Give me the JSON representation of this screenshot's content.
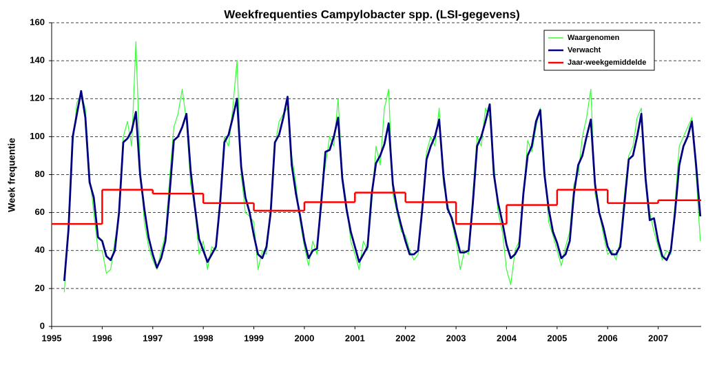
{
  "chart_data": {
    "type": "line",
    "title": "Weekfrequenties Campylobacter spp. (LSI-gegevens)",
    "y_label": "Week frequentie",
    "xlim": [
      1995,
      2007.85
    ],
    "xticks": [
      1995,
      1996,
      1997,
      1998,
      1999,
      2000,
      2001,
      2002,
      2003,
      2004,
      2005,
      2006,
      2007
    ],
    "ylim": [
      0,
      160
    ],
    "yticks": [
      0,
      20,
      40,
      60,
      80,
      100,
      120,
      140,
      160
    ],
    "grid": true,
    "legend": "top-right",
    "x": [
      1995.25,
      1995.333,
      1995.417,
      1995.5,
      1995.583,
      1995.667,
      1995.75,
      1995.833,
      1995.917,
      1996,
      1996.083,
      1996.167,
      1996.25,
      1996.333,
      1996.417,
      1996.5,
      1996.583,
      1996.667,
      1996.75,
      1996.833,
      1996.917,
      1997,
      1997.083,
      1997.167,
      1997.25,
      1997.333,
      1997.417,
      1997.5,
      1997.583,
      1997.667,
      1997.75,
      1997.833,
      1997.917,
      1998,
      1998.083,
      1998.167,
      1998.25,
      1998.333,
      1998.417,
      1998.5,
      1998.583,
      1998.667,
      1998.75,
      1998.833,
      1998.917,
      1999,
      1999.083,
      1999.167,
      1999.25,
      1999.333,
      1999.417,
      1999.5,
      1999.583,
      1999.667,
      1999.75,
      1999.833,
      1999.917,
      2000,
      2000.083,
      2000.167,
      2000.25,
      2000.333,
      2000.417,
      2000.5,
      2000.583,
      2000.667,
      2000.75,
      2000.833,
      2000.917,
      2001,
      2001.083,
      2001.167,
      2001.25,
      2001.333,
      2001.417,
      2001.5,
      2001.583,
      2001.667,
      2001.75,
      2001.833,
      2001.917,
      2002,
      2002.083,
      2002.167,
      2002.25,
      2002.333,
      2002.417,
      2002.5,
      2002.583,
      2002.667,
      2002.75,
      2002.833,
      2002.917,
      2003,
      2003.083,
      2003.167,
      2003.25,
      2003.333,
      2003.417,
      2003.5,
      2003.583,
      2003.667,
      2003.75,
      2003.833,
      2003.917,
      2004,
      2004.083,
      2004.167,
      2004.25,
      2004.333,
      2004.417,
      2004.5,
      2004.583,
      2004.667,
      2004.75,
      2004.833,
      2004.917,
      2005,
      2005.083,
      2005.167,
      2005.25,
      2005.333,
      2005.417,
      2005.5,
      2005.583,
      2005.667,
      2005.75,
      2005.833,
      2005.917,
      2006,
      2006.083,
      2006.167,
      2006.25,
      2006.333,
      2006.417,
      2006.5,
      2006.583,
      2006.667,
      2006.75,
      2006.833,
      2006.917,
      2007,
      2007.083,
      2007.167,
      2007.25,
      2007.333,
      2007.417,
      2007.5,
      2007.583,
      2007.667,
      2007.75,
      2007.833
    ],
    "series": [
      {
        "name": "Waargenomen",
        "color": "#33ff33",
        "values": [
          18,
          55,
          95,
          118,
          122,
          115,
          80,
          60,
          40,
          40,
          28,
          30,
          45,
          58,
          100,
          108,
          95,
          150,
          85,
          55,
          42,
          35,
          30,
          40,
          48,
          78,
          105,
          112,
          125,
          108,
          75,
          62,
          38,
          45,
          30,
          42,
          40,
          68,
          100,
          95,
          115,
          140,
          80,
          60,
          58,
          55,
          30,
          40,
          38,
          62,
          95,
          108,
          112,
          115,
          90,
          75,
          55,
          42,
          32,
          45,
          38,
          70,
          85,
          100,
          95,
          120,
          80,
          65,
          45,
          38,
          30,
          45,
          40,
          65,
          95,
          85,
          115,
          125,
          70,
          60,
          50,
          48,
          40,
          35,
          38,
          60,
          92,
          100,
          95,
          115,
          75,
          65,
          55,
          45,
          30,
          40,
          38,
          70,
          100,
          95,
          115,
          110,
          85,
          60,
          50,
          30,
          22,
          40,
          45,
          68,
          98,
          92,
          105,
          115,
          85,
          55,
          48,
          40,
          32,
          42,
          50,
          75,
          80,
          100,
          110,
          125,
          70,
          60,
          48,
          38,
          40,
          35,
          45,
          70,
          90,
          95,
          110,
          115,
          80,
          60,
          50,
          42,
          35,
          40,
          38,
          65,
          95,
          100,
          105,
          110,
          80,
          45
        ]
      },
      {
        "name": "Verwacht",
        "color": "#000080",
        "values": [
          24,
          51,
          100,
          112,
          124,
          110,
          76,
          68,
          47,
          45,
          37,
          35,
          40,
          60,
          97,
          99,
          103,
          113,
          80,
          62,
          47,
          38,
          31,
          36,
          45,
          70,
          98,
          100,
          105,
          112,
          82,
          63,
          46,
          40,
          34,
          38,
          42,
          65,
          97,
          101,
          110,
          120,
          84,
          68,
          60,
          48,
          38,
          36,
          42,
          60,
          97,
          101,
          110,
          121,
          85,
          70,
          58,
          45,
          36,
          40,
          41,
          65,
          92,
          93,
          100,
          110,
          78,
          62,
          50,
          42,
          34,
          38,
          42,
          70,
          86,
          90,
          96,
          107,
          75,
          62,
          53,
          45,
          38,
          38,
          40,
          62,
          88,
          95,
          100,
          109,
          80,
          62,
          57,
          48,
          39,
          39,
          40,
          65,
          95,
          100,
          108,
          117,
          80,
          65,
          55,
          43,
          36,
          38,
          42,
          70,
          90,
          95,
          108,
          114,
          80,
          62,
          50,
          44,
          36,
          38,
          45,
          70,
          85,
          90,
          100,
          109,
          75,
          60,
          52,
          42,
          38,
          38,
          42,
          65,
          88,
          90,
          100,
          112,
          78,
          56,
          57,
          45,
          37,
          35,
          40,
          60,
          85,
          95,
          100,
          108,
          85,
          58
        ]
      },
      {
        "name": "Jaar-weekgemiddelde",
        "color": "#ff0000",
        "style": "step",
        "x": [
          1995,
          1996,
          1997,
          1998,
          1999,
          2000,
          2001,
          2002,
          2003,
          2004,
          2005,
          2006,
          2007
        ],
        "values": [
          54,
          72,
          70,
          65,
          61,
          65.5,
          70.5,
          65.5,
          54,
          64,
          72,
          65,
          66.5
        ]
      }
    ]
  }
}
